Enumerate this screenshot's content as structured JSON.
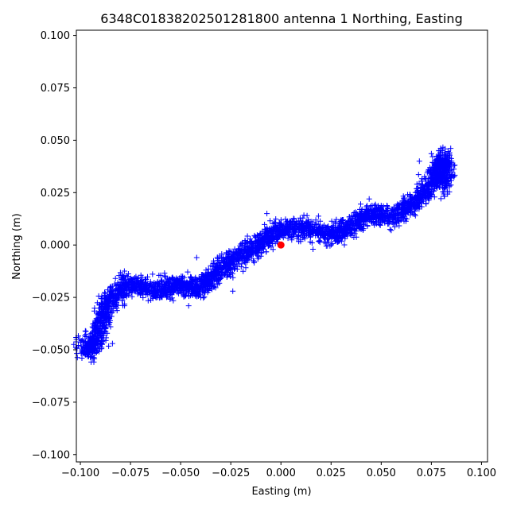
{
  "chart_data": {
    "type": "scatter",
    "title": "6348C01838202501281800 antenna 1 Northing, Easting",
    "xlabel": "Easting (m)",
    "ylabel": "Northing (m)",
    "xlim": [
      -0.102,
      0.103
    ],
    "ylim": [
      -0.1035,
      0.1025
    ],
    "xticks": [
      -0.1,
      -0.075,
      -0.05,
      -0.025,
      0.0,
      0.025,
      0.05,
      0.075,
      0.1
    ],
    "xtick_labels": [
      "−0.100",
      "−0.075",
      "−0.050",
      "−0.025",
      "0.000",
      "0.025",
      "0.050",
      "0.075",
      "0.100"
    ],
    "yticks": [
      -0.1,
      -0.075,
      -0.05,
      -0.025,
      0.0,
      0.025,
      0.05,
      0.075,
      0.1
    ],
    "ytick_labels": [
      "−0.100",
      "−0.075",
      "−0.050",
      "−0.025",
      "0.000",
      "0.025",
      "0.050",
      "0.075",
      "0.100"
    ],
    "grid": false,
    "series": [
      {
        "marker": "plus",
        "color": "#0000ff",
        "trace": [
          [
            -0.1,
            -0.048
          ],
          [
            -0.096,
            -0.05
          ],
          [
            -0.092,
            -0.046
          ],
          [
            -0.09,
            -0.04
          ],
          [
            -0.088,
            -0.03
          ],
          [
            -0.085,
            -0.027
          ],
          [
            -0.082,
            -0.022
          ],
          [
            -0.079,
            -0.02
          ],
          [
            -0.075,
            -0.019
          ],
          [
            -0.07,
            -0.02
          ],
          [
            -0.065,
            -0.021
          ],
          [
            -0.06,
            -0.022
          ],
          [
            -0.055,
            -0.02
          ],
          [
            -0.05,
            -0.019
          ],
          [
            -0.045,
            -0.021
          ],
          [
            -0.04,
            -0.02
          ],
          [
            -0.035,
            -0.016
          ],
          [
            -0.03,
            -0.012
          ],
          [
            -0.025,
            -0.008
          ],
          [
            -0.02,
            -0.005
          ],
          [
            -0.015,
            -0.002
          ],
          [
            -0.01,
            0.0
          ],
          [
            -0.006,
            0.004
          ],
          [
            -0.002,
            0.007
          ],
          [
            0.003,
            0.008
          ],
          [
            0.008,
            0.007
          ],
          [
            0.013,
            0.008
          ],
          [
            0.018,
            0.007
          ],
          [
            0.023,
            0.005
          ],
          [
            0.028,
            0.005
          ],
          [
            0.033,
            0.008
          ],
          [
            0.037,
            0.011
          ],
          [
            0.042,
            0.014
          ],
          [
            0.047,
            0.015
          ],
          [
            0.052,
            0.014
          ],
          [
            0.057,
            0.014
          ],
          [
            0.062,
            0.017
          ],
          [
            0.067,
            0.021
          ],
          [
            0.072,
            0.025
          ],
          [
            0.076,
            0.03
          ],
          [
            0.079,
            0.038
          ],
          [
            0.081,
            0.042
          ],
          [
            0.082,
            0.035
          ],
          [
            0.081,
            0.027
          ]
        ],
        "spread_easting": 0.0022,
        "spread_northing": 0.0024,
        "count": 3600,
        "outliers": [
          [
            -0.084,
            -0.047
          ],
          [
            -0.046,
            -0.029
          ],
          [
            -0.042,
            -0.006
          ],
          [
            -0.024,
            -0.022
          ],
          [
            -0.007,
            0.015
          ],
          [
            0.016,
            -0.002
          ],
          [
            0.044,
            0.022
          ],
          [
            0.069,
            0.04
          ],
          [
            0.055,
            0.007
          ],
          [
            -0.088,
            -0.024
          ]
        ]
      },
      {
        "marker": "circle",
        "color": "#ff0000",
        "points": [
          [
            0.0,
            0.0
          ]
        ]
      }
    ]
  }
}
